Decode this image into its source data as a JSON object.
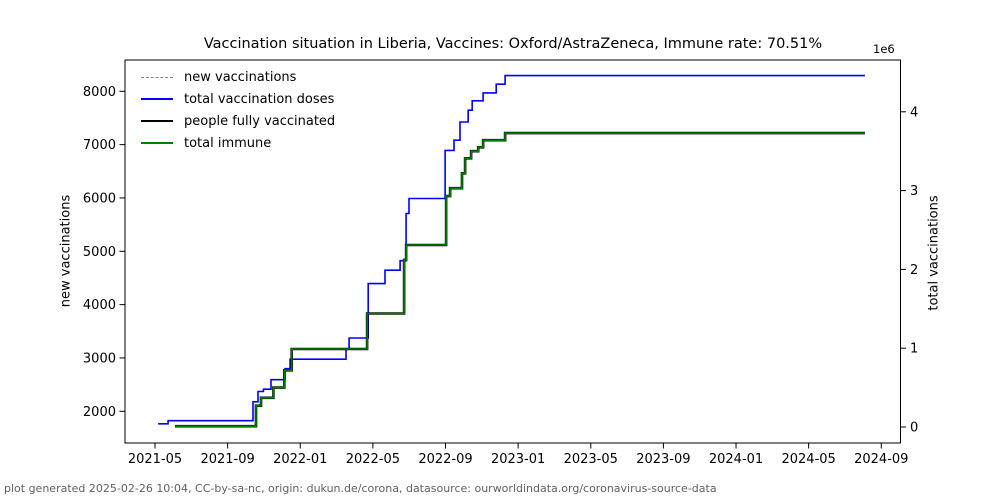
{
  "footer": "plot generated 2025-02-26 10:04, CC-by-sa-nc, origin: dukun.de/corona, datasource: ourworldindata.org/coronavirus-source-data",
  "chart_data": {
    "type": "line",
    "title": "Vaccination situation in Liberia, Vaccines: Oxford/AstraZeneca, Immune rate: 70.51%",
    "immune_rate_pct": 70.51,
    "x_unit": "months since 2021-05",
    "x_axis": {
      "ticks": [
        {
          "m": 0,
          "label": "2021-05"
        },
        {
          "m": 4,
          "label": "2021-09"
        },
        {
          "m": 8,
          "label": "2022-01"
        },
        {
          "m": 12,
          "label": "2022-05"
        },
        {
          "m": 16,
          "label": "2022-09"
        },
        {
          "m": 20,
          "label": "2023-01"
        },
        {
          "m": 24,
          "label": "2023-05"
        },
        {
          "m": 28,
          "label": "2023-09"
        },
        {
          "m": 32,
          "label": "2024-01"
        },
        {
          "m": 36,
          "label": "2024-05"
        },
        {
          "m": 40,
          "label": "2024-09"
        }
      ]
    },
    "y_left": {
      "label": "new vaccinations",
      "ticks": [
        2000,
        3000,
        4000,
        5000,
        6000,
        7000,
        8000
      ]
    },
    "y_right": {
      "label": "total vaccinations",
      "multiplier": "1e6",
      "ticks": [
        0,
        1,
        2,
        3,
        4
      ]
    },
    "series": [
      {
        "name": "new vaccinations",
        "color": "#808080",
        "style": "dashed",
        "axis": "left",
        "points": []
      },
      {
        "name": "total vaccination doses",
        "color": "#0000ff",
        "style": "solid",
        "axis": "right",
        "value_unit": "1e6",
        "points": [
          [
            0.17,
            0.04
          ],
          [
            0.72,
            0.08
          ],
          [
            5.4,
            0.32
          ],
          [
            5.67,
            0.45
          ],
          [
            5.97,
            0.48
          ],
          [
            6.39,
            0.6
          ],
          [
            7.16,
            0.74
          ],
          [
            7.44,
            0.86
          ],
          [
            10.52,
            0.99
          ],
          [
            10.69,
            1.13
          ],
          [
            11.74,
            1.82
          ],
          [
            12.67,
            1.99
          ],
          [
            13.5,
            2.11
          ],
          [
            13.83,
            2.71
          ],
          [
            13.99,
            2.9
          ],
          [
            15.98,
            3.51
          ],
          [
            16.47,
            3.64
          ],
          [
            16.8,
            3.87
          ],
          [
            17.25,
            4.02
          ],
          [
            17.47,
            4.14
          ],
          [
            18.07,
            4.24
          ],
          [
            18.79,
            4.35
          ],
          [
            19.28,
            4.46
          ],
          [
            39.1,
            4.46
          ]
        ]
      },
      {
        "name": "people fully vaccinated",
        "color": "#000000",
        "style": "solid",
        "axis": "right",
        "value_unit": "1e6",
        "points": [
          [
            1.1,
            0.01
          ],
          [
            5.56,
            0.27
          ],
          [
            5.84,
            0.37
          ],
          [
            6.52,
            0.5
          ],
          [
            7.12,
            0.72
          ],
          [
            7.53,
            0.99
          ],
          [
            11.68,
            1.44
          ],
          [
            13.72,
            2.12
          ],
          [
            13.83,
            2.31
          ],
          [
            16.03,
            2.93
          ],
          [
            16.25,
            3.03
          ],
          [
            16.91,
            3.22
          ],
          [
            17.08,
            3.41
          ],
          [
            17.41,
            3.5
          ],
          [
            17.8,
            3.55
          ],
          [
            18.07,
            3.64
          ],
          [
            19.28,
            3.73
          ],
          [
            39.1,
            3.73
          ]
        ]
      },
      {
        "name": "total immune",
        "color": "#008000",
        "style": "solid",
        "axis": "right",
        "value_unit": "1e6",
        "points": [
          [
            1.1,
            0.01
          ],
          [
            5.56,
            0.27
          ],
          [
            5.84,
            0.37
          ],
          [
            6.52,
            0.5
          ],
          [
            7.12,
            0.72
          ],
          [
            7.53,
            0.99
          ],
          [
            11.68,
            1.44
          ],
          [
            13.72,
            2.12
          ],
          [
            13.83,
            2.31
          ],
          [
            16.03,
            2.93
          ],
          [
            16.25,
            3.03
          ],
          [
            16.91,
            3.22
          ],
          [
            17.08,
            3.41
          ],
          [
            17.41,
            3.5
          ],
          [
            17.8,
            3.55
          ],
          [
            18.07,
            3.64
          ],
          [
            19.28,
            3.73
          ],
          [
            39.1,
            3.73
          ]
        ]
      }
    ]
  }
}
